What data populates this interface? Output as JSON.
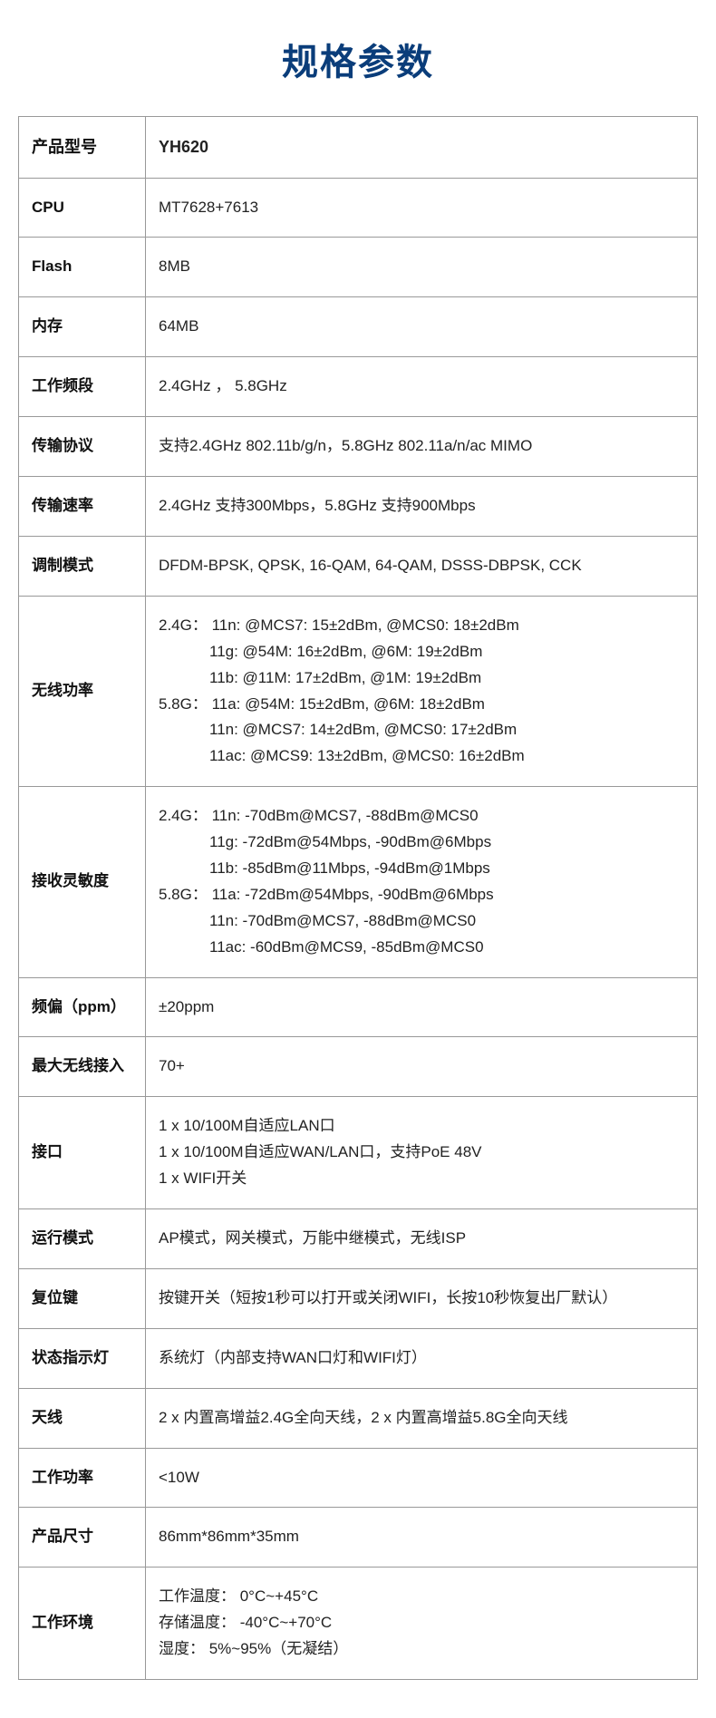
{
  "title": "规格参数",
  "table": {
    "title_color": "#0a3d7a",
    "title_fontsize": 40,
    "border_color": "#999999",
    "label_column_width": 140,
    "cell_fontsize": 17,
    "text_color": "#222222",
    "label_font_weight": "bold",
    "rows": [
      {
        "label": "产品型号",
        "value": "YH620",
        "bold": true
      },
      {
        "label": "CPU",
        "value": " MT7628+7613"
      },
      {
        "label": "Flash",
        "value": "8MB"
      },
      {
        "label": "内存",
        "value": "64MB"
      },
      {
        "label": "工作频段",
        "value": "2.4GHz ， 5.8GHz"
      },
      {
        "label": "传输协议",
        "value": "支持2.4GHz 802.11b/g/n，5.8GHz 802.11a/n/ac MIMO"
      },
      {
        "label": "传输速率",
        "value": "2.4GHz 支持300Mbps，5.8GHz 支持900Mbps"
      },
      {
        "label": "调制模式",
        "value": "DFDM-BPSK, QPSK, 16-QAM, 64-QAM, DSSS-DBPSK, CCK"
      },
      {
        "label": "无线功率",
        "lines": [
          {
            "text": "2.4G： 11n: @MCS7: 15±2dBm, @MCS0: 18±2dBm",
            "indent": false
          },
          {
            "text": "11g: @54M: 16±2dBm, @6M: 19±2dBm",
            "indent": true
          },
          {
            "text": "11b: @11M: 17±2dBm, @1M: 19±2dBm",
            "indent": true
          },
          {
            "text": "5.8G： 11a: @54M: 15±2dBm, @6M: 18±2dBm",
            "indent": false
          },
          {
            "text": "11n: @MCS7: 14±2dBm, @MCS0: 17±2dBm",
            "indent": true
          },
          {
            "text": "11ac: @MCS9: 13±2dBm, @MCS0: 16±2dBm",
            "indent": true
          }
        ]
      },
      {
        "label": "接收灵敏度",
        "lines": [
          {
            "text": "2.4G： 11n: -70dBm@MCS7, -88dBm@MCS0",
            "indent": false
          },
          {
            "text": "11g: -72dBm@54Mbps, -90dBm@6Mbps",
            "indent": true
          },
          {
            "text": "11b: -85dBm@11Mbps, -94dBm@1Mbps",
            "indent": true
          },
          {
            "text": "5.8G： 11a: -72dBm@54Mbps, -90dBm@6Mbps",
            "indent": false
          },
          {
            "text": "11n: -70dBm@MCS7, -88dBm@MCS0",
            "indent": true
          },
          {
            "text": "11ac: -60dBm@MCS9, -85dBm@MCS0",
            "indent": true
          }
        ]
      },
      {
        "label": "频偏（ppm）",
        "value": "±20ppm"
      },
      {
        "label": "最大无线接入",
        "value": "70+"
      },
      {
        "label": "接口",
        "lines": [
          {
            "text": "1 x 10/100M自适应LAN口",
            "indent": false
          },
          {
            "text": "1 x 10/100M自适应WAN/LAN口，支持PoE 48V",
            "indent": false
          },
          {
            "text": "1 x WIFI开关",
            "indent": false
          }
        ]
      },
      {
        "label": "运行模式",
        "value": "AP模式，网关模式，万能中继模式，无线ISP"
      },
      {
        "label": "复位键",
        "value": "按键开关（短按1秒可以打开或关闭WIFI，长按10秒恢复出厂默认）"
      },
      {
        "label": "状态指示灯",
        "value": "系统灯（内部支持WAN口灯和WIFI灯）"
      },
      {
        "label": "天线",
        "value": "2 x 内置高增益2.4G全向天线，2 x 内置高增益5.8G全向天线"
      },
      {
        "label": "工作功率",
        "value": "<10W"
      },
      {
        "label": "产品尺寸",
        "value": "86mm*86mm*35mm"
      },
      {
        "label": "工作环境",
        "lines": [
          {
            "text": "工作温度： 0°C~+45°C",
            "indent": false
          },
          {
            "text": "存储温度： -40°C~+70°C",
            "indent": false
          },
          {
            "text": "湿度： 5%~95%（无凝结）",
            "indent": false
          }
        ]
      }
    ]
  }
}
